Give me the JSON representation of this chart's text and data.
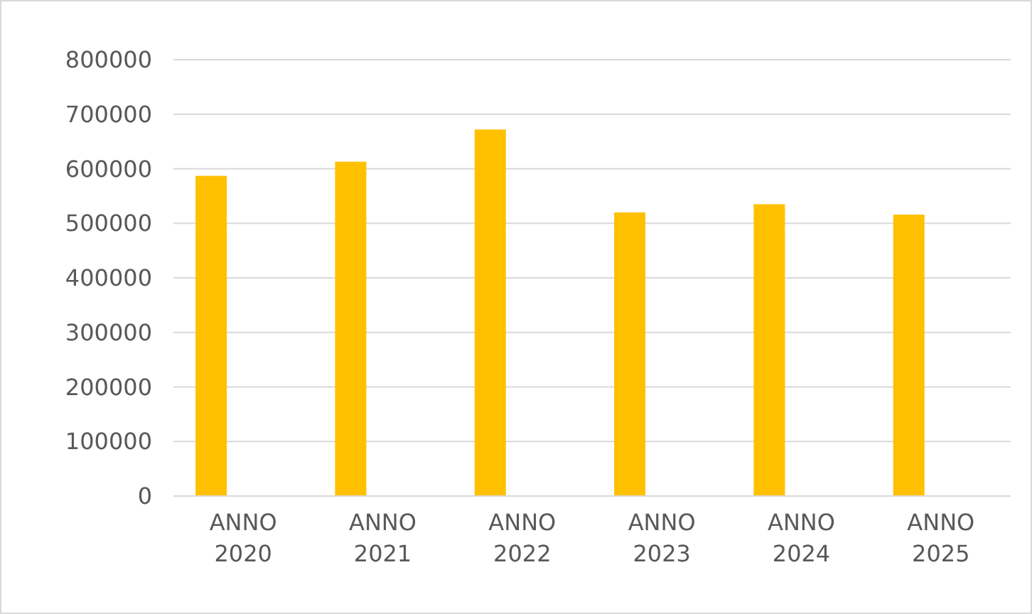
{
  "chart_data": {
    "type": "bar",
    "categories": [
      "ANNO 2020",
      "ANNO 2021",
      "ANNO 2022",
      "ANNO 2023",
      "ANNO 2024",
      "ANNO 2025"
    ],
    "values": [
      587000,
      613000,
      672000,
      520000,
      535000,
      516000
    ],
    "color": "#ffc000",
    "ylim": [
      0,
      800000
    ],
    "yticks": [
      0,
      100000,
      200000,
      300000,
      400000,
      500000,
      600000,
      700000,
      800000
    ],
    "grid": "y"
  }
}
